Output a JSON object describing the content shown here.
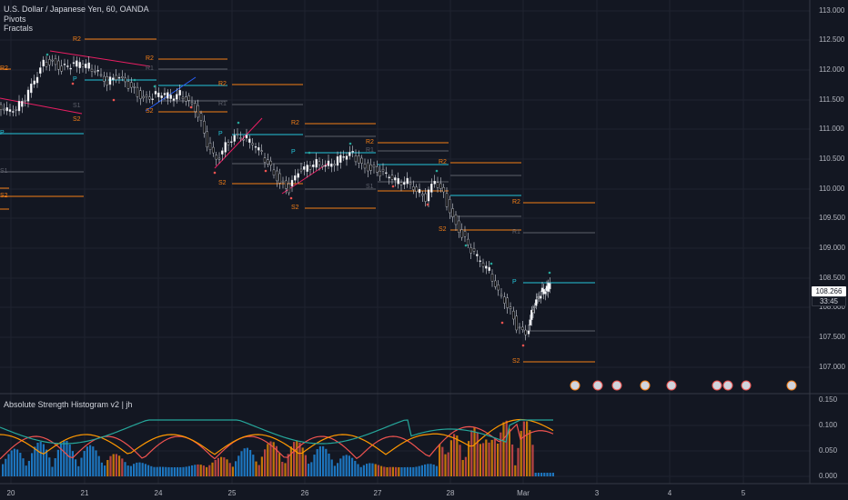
{
  "header": {
    "symbol": "U.S. Dollar / Japanese Yen, 60, OANDA",
    "indicator_1": "Pivots",
    "indicator_2": "Fractals"
  },
  "sub_pane": {
    "title": "Absolute Strength Histogram v2 | jh",
    "y_ticks": [
      "0.150",
      "0.100",
      "0.050",
      "0.000"
    ]
  },
  "price_axis": {
    "ticks": [
      "113.000",
      "112.500",
      "112.000",
      "111.500",
      "111.000",
      "110.500",
      "110.000",
      "109.500",
      "109.000",
      "108.500",
      "108.000",
      "107.500",
      "107.000"
    ],
    "current_price": "108.266",
    "countdown": "33:45"
  },
  "time_axis": {
    "ticks": [
      "20",
      "21",
      "24",
      "25",
      "26",
      "27",
      "28",
      "Mar",
      "3",
      "4",
      "5"
    ]
  },
  "colors": {
    "background": "#131722",
    "up_candle": "#ffffff",
    "down_candle": "#000000",
    "pivot_p": "#26c6da",
    "pivot_r": "#f57f17",
    "pivot_s": "#f57f17",
    "pivot_r1": "#5d606b",
    "histogram_red": "#ef5350",
    "histogram_orange": "#ff9800",
    "histogram_blue": "#2196f3"
  },
  "chart_data": {
    "type": "candlestick",
    "ylim": [
      106.8,
      113.1
    ],
    "pivot_labels": [
      "R2",
      "R1",
      "P",
      "S1",
      "S2"
    ]
  }
}
